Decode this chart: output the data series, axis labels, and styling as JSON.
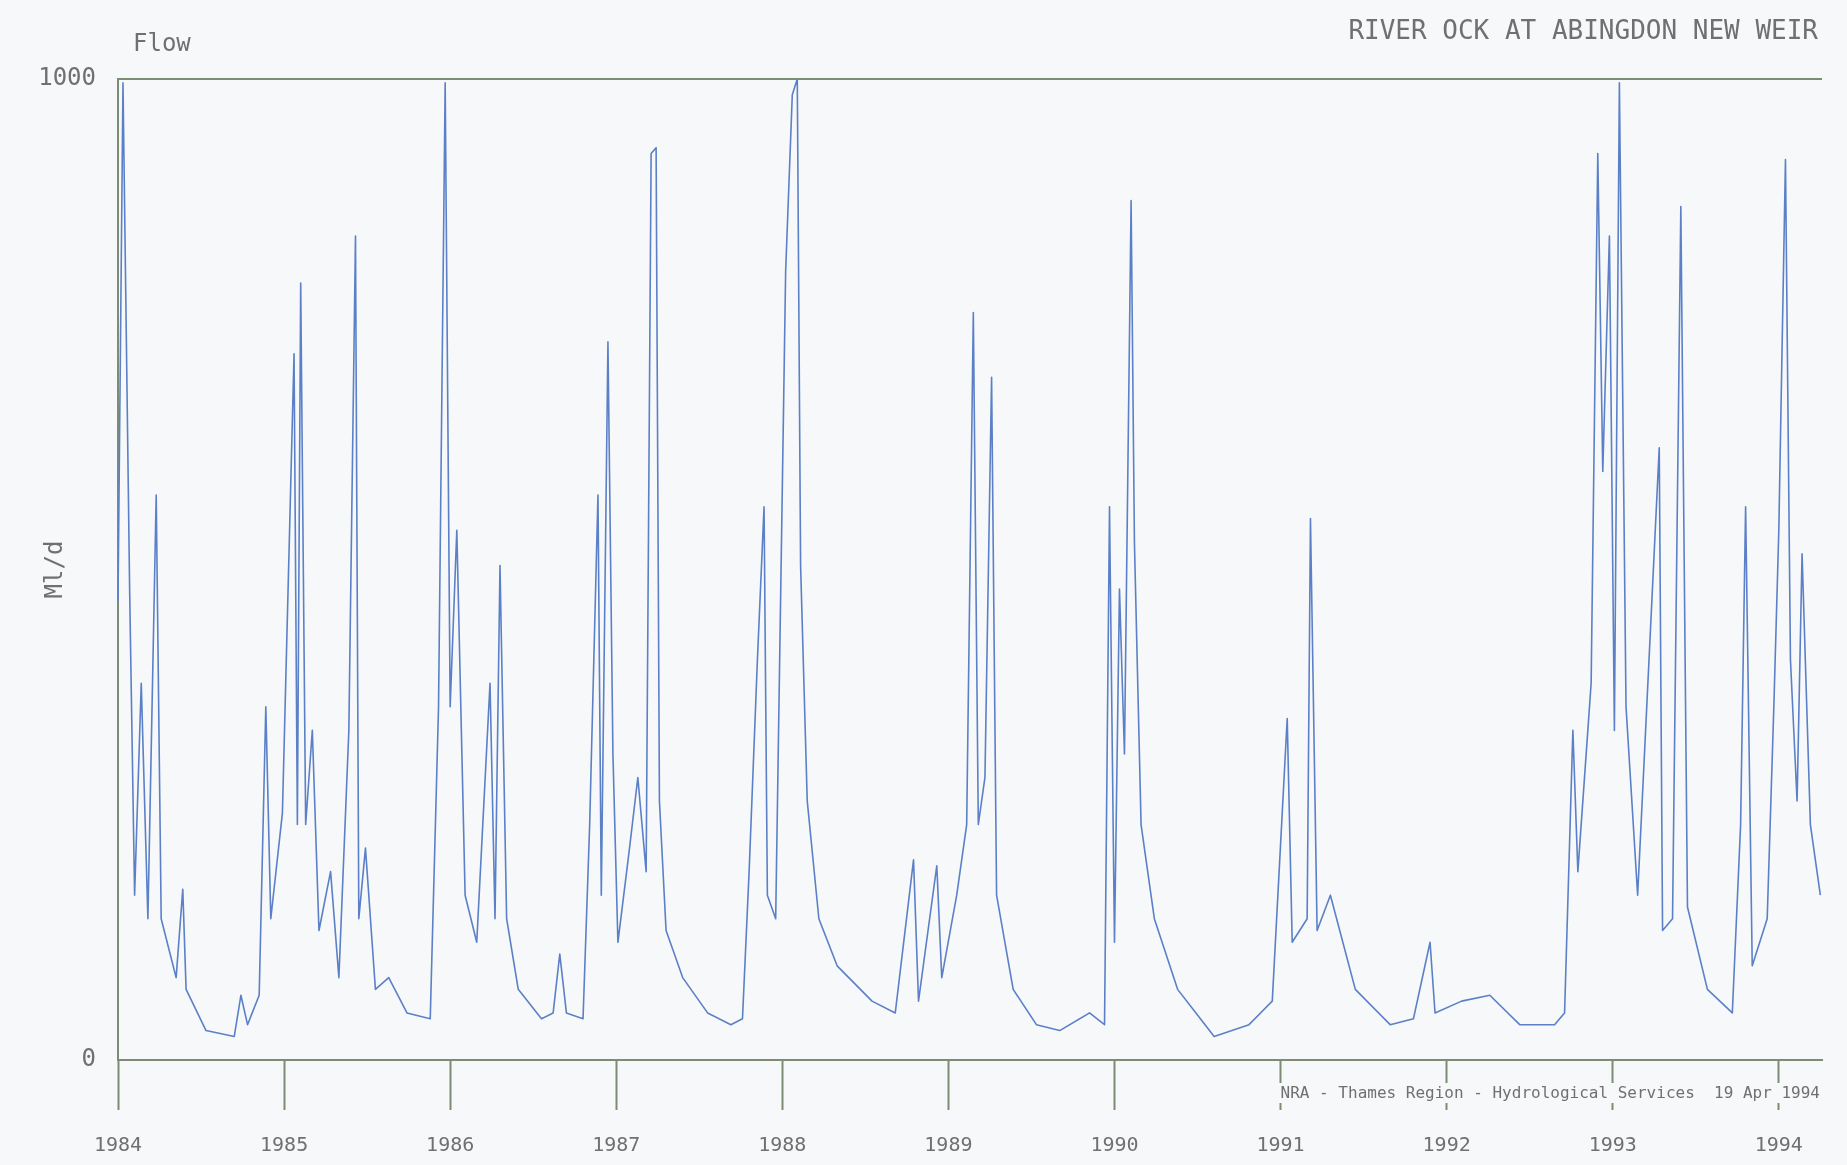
{
  "chart_data": {
    "type": "line",
    "title": "RIVER OCK AT ABINGDON NEW WEIR",
    "subtitle": "Flow",
    "ylabel": "Ml/d",
    "annotations": [
      "NRA - Thames Region - Hydrological Services  19 Apr 1994"
    ],
    "x": [
      1984,
      1984.03,
      1984.07,
      1984.1,
      1984.14,
      1984.18,
      1984.23,
      1984.26,
      1984.35,
      1984.39,
      1984.41,
      1984.53,
      1984.7,
      1984.74,
      1984.78,
      1984.85,
      1984.89,
      1984.92,
      1984.99,
      1985.06,
      1985.08,
      1985.1,
      1985.13,
      1985.17,
      1985.21,
      1985.28,
      1985.33,
      1985.39,
      1985.43,
      1985.45,
      1985.49,
      1985.55,
      1985.63,
      1985.74,
      1985.88,
      1985.93,
      1985.97,
      1986,
      1986.04,
      1986.09,
      1986.16,
      1986.24,
      1986.27,
      1986.3,
      1986.34,
      1986.41,
      1986.55,
      1986.62,
      1986.66,
      1986.7,
      1986.8,
      1986.84,
      1986.89,
      1986.91,
      1986.95,
      1986.98,
      1987.01,
      1987.08,
      1987.13,
      1987.18,
      1987.21,
      1987.24,
      1987.26,
      1987.3,
      1987.4,
      1987.55,
      1987.69,
      1987.76,
      1987.8,
      1987.85,
      1987.89,
      1987.91,
      1987.96,
      1988.02,
      1988.06,
      1988.09,
      1988.11,
      1988.15,
      1988.22,
      1988.33,
      1988.54,
      1988.68,
      1988.79,
      1988.82,
      1988.93,
      1988.96,
      1989.05,
      1989.11,
      1989.15,
      1989.18,
      1989.22,
      1989.26,
      1989.29,
      1989.39,
      1989.53,
      1989.67,
      1989.85,
      1989.94,
      1989.97,
      1990,
      1990.03,
      1990.06,
      1990.1,
      1990.12,
      1990.16,
      1990.24,
      1990.38,
      1990.6,
      1990.81,
      1990.95,
      1991.04,
      1991.07,
      1991.16,
      1991.18,
      1991.22,
      1991.3,
      1991.45,
      1991.66,
      1991.8,
      1991.9,
      1991.93,
      1992.09,
      1992.26,
      1992.44,
      1992.65,
      1992.71,
      1992.76,
      1992.79,
      1992.87,
      1992.91,
      1992.94,
      1992.98,
      1993.01,
      1993.04,
      1993.08,
      1993.15,
      1993.28,
      1993.3,
      1993.36,
      1993.41,
      1993.45,
      1993.57,
      1993.72,
      1993.77,
      1993.8,
      1993.84,
      1993.93,
      1993.97,
      1994,
      1994.04,
      1994.07,
      1994.11,
      1994.14,
      1994.19,
      1994.25
    ],
    "series": [
      {
        "color": "#5b80c8",
        "values": [
          468,
          996,
          480,
          168,
          384,
          144,
          576,
          144,
          84,
          174,
          72,
          30,
          24,
          66,
          36,
          66,
          360,
          144,
          252,
          720,
          240,
          792,
          240,
          336,
          132,
          192,
          84,
          336,
          840,
          144,
          216,
          72,
          84,
          48,
          42,
          360,
          996,
          360,
          540,
          168,
          120,
          384,
          144,
          504,
          144,
          72,
          42,
          48,
          108,
          48,
          42,
          240,
          576,
          168,
          732,
          312,
          120,
          216,
          288,
          192,
          924,
          930,
          264,
          132,
          84,
          48,
          36,
          42,
          192,
          408,
          564,
          168,
          144,
          804,
          984,
          1000,
          504,
          264,
          144,
          96,
          60,
          48,
          204,
          60,
          198,
          84,
          168,
          240,
          762,
          240,
          288,
          696,
          168,
          72,
          36,
          30,
          48,
          36,
          564,
          120,
          480,
          312,
          876,
          528,
          240,
          144,
          72,
          24,
          36,
          60,
          348,
          120,
          144,
          552,
          132,
          168,
          72,
          36,
          42,
          120,
          48,
          60,
          66,
          36,
          36,
          48,
          336,
          192,
          384,
          924,
          600,
          840,
          336,
          996,
          360,
          168,
          624,
          132,
          144,
          870,
          156,
          72,
          48,
          240,
          564,
          96,
          144,
          360,
          540,
          918,
          408,
          264,
          516,
          240,
          168
        ]
      }
    ],
    "xlim": [
      1984,
      1994.26
    ],
    "xticks": [
      1984,
      1985,
      1986,
      1987,
      1988,
      1989,
      1990,
      1991,
      1992,
      1993,
      1994
    ],
    "ylim": [
      0,
      1000
    ],
    "yticks": [
      0,
      1000
    ],
    "marker": "none",
    "line_style": "solid"
  }
}
